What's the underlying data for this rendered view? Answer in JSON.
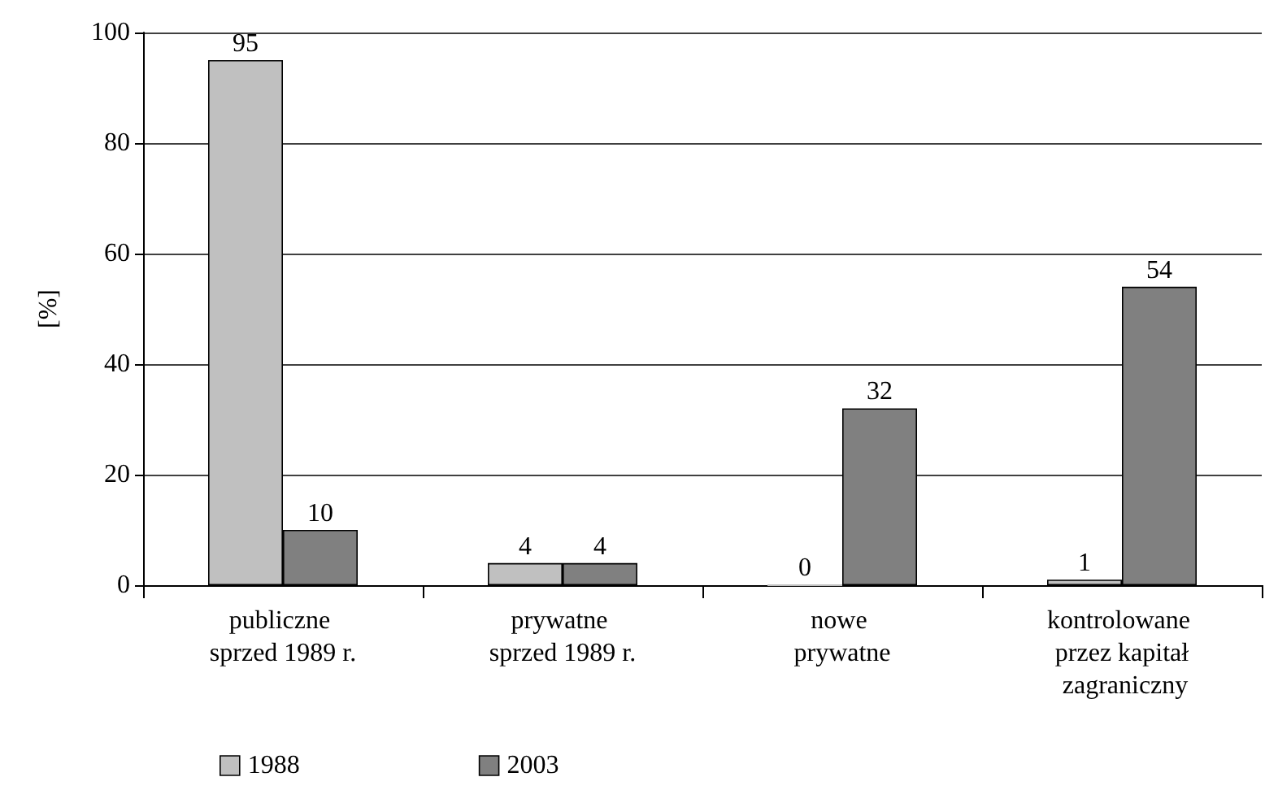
{
  "chart_data": {
    "type": "bar",
    "ylabel": "[%]",
    "categories": [
      "publiczne sprzed 1989 r.",
      "prywatne sprzed 1989 r.",
      "nowe prywatne",
      "kontrolowane przez kapitał zagraniczny"
    ],
    "series": [
      {
        "name": "1988",
        "color": "#c0c0c0",
        "values": [
          95,
          4,
          0,
          1
        ]
      },
      {
        "name": "2003",
        "color": "#808080",
        "values": [
          10,
          4,
          32,
          54
        ]
      }
    ],
    "ylim": [
      0,
      100
    ],
    "yticks": [
      0,
      20,
      40,
      60,
      80,
      100
    ],
    "grid": "y",
    "legend": "bottom",
    "data_labels": true
  }
}
